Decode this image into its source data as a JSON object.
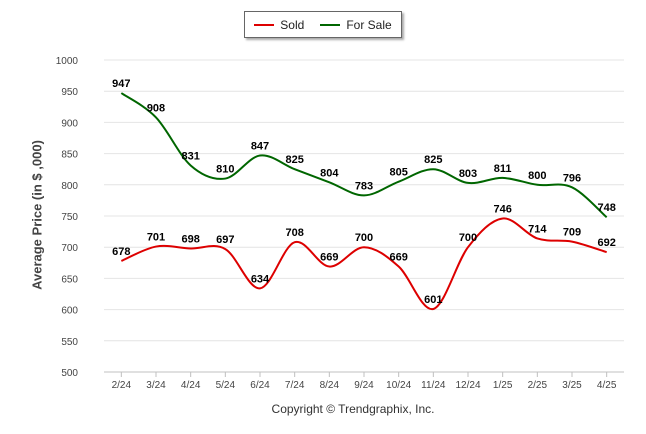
{
  "chart_data": {
    "type": "line",
    "ylabel": "Average Price (in $ ,000)",
    "ylim": [
      500,
      1000
    ],
    "yticks": [
      500,
      550,
      600,
      650,
      700,
      750,
      800,
      850,
      900,
      950,
      1000
    ],
    "categories": [
      "2/24",
      "3/24",
      "4/24",
      "5/24",
      "6/24",
      "7/24",
      "8/24",
      "9/24",
      "10/24",
      "11/24",
      "12/24",
      "1/25",
      "2/25",
      "3/25",
      "4/25"
    ],
    "grid": true,
    "legend_position": "top-center",
    "series": [
      {
        "name": "Sold",
        "color": "#dd0000",
        "values": [
          678,
          701,
          698,
          697,
          634,
          708,
          669,
          700,
          669,
          601,
          700,
          746,
          714,
          709,
          692
        ]
      },
      {
        "name": "For Sale",
        "color": "#006600",
        "values": [
          947,
          908,
          831,
          810,
          847,
          825,
          804,
          783,
          805,
          825,
          803,
          811,
          800,
          796,
          748
        ]
      }
    ]
  },
  "footer": {
    "copyright": "Copyright © Trendgraphix, Inc."
  }
}
